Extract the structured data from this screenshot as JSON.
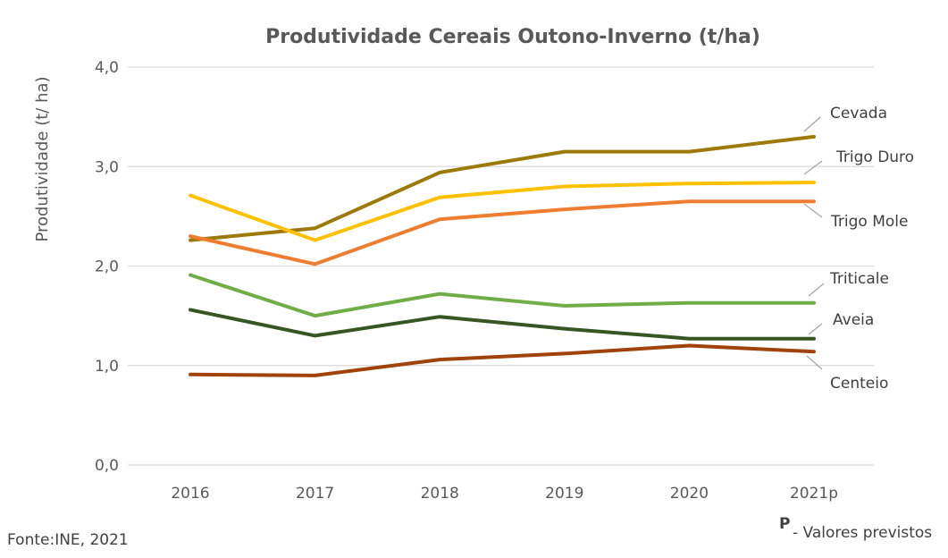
{
  "chart_data": {
    "type": "line",
    "title": "Produtividade Cereais Outono-Inverno (t/ha)",
    "ylabel": "Produtividade (t/ ha)",
    "xlabel": "",
    "categories": [
      "2016",
      "2017",
      "2018",
      "2019",
      "2020",
      "2021p"
    ],
    "ylim": [
      0,
      4
    ],
    "yticks": [
      "0,0",
      "1,0",
      "2,0",
      "3,0",
      "4,0"
    ],
    "grid": true,
    "series": [
      {
        "name": "Cevada",
        "color": "#9C7A0A",
        "values": [
          2.26,
          2.38,
          2.94,
          3.15,
          3.15,
          3.3
        ]
      },
      {
        "name": "Trigo Duro",
        "color": "#FFC000",
        "values": [
          2.71,
          2.26,
          2.69,
          2.8,
          2.83,
          2.84
        ]
      },
      {
        "name": "Trigo Mole",
        "color": "#ED7D31",
        "values": [
          2.3,
          2.02,
          2.47,
          2.57,
          2.65,
          2.65
        ]
      },
      {
        "name": "Triticale",
        "color": "#70AD47",
        "values": [
          1.91,
          1.5,
          1.72,
          1.6,
          1.63,
          1.63
        ]
      },
      {
        "name": "Aveia",
        "color": "#375623",
        "values": [
          1.56,
          1.3,
          1.49,
          1.37,
          1.27,
          1.27
        ]
      },
      {
        "name": "Centeio",
        "color": "#A0420A",
        "values": [
          0.91,
          0.9,
          1.06,
          1.12,
          1.2,
          1.14
        ]
      }
    ]
  },
  "footer": {
    "source": "Fonte:INE, 2021",
    "note_marker": "P",
    "note_text": "- Valores previstos"
  }
}
